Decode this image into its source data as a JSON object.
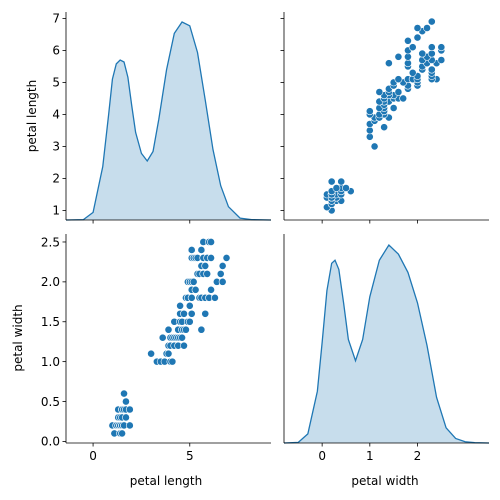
{
  "chart_data": {
    "type": "scatter",
    "figure_kind": "pairplot",
    "variables": [
      "petal length",
      "petal width"
    ],
    "axis_labels": {
      "petal_length": "petal length",
      "petal_width": "petal width"
    },
    "limits": {
      "petal_length": [
        0.7,
        7.2
      ],
      "petal_width": [
        -0.02,
        2.6
      ],
      "kde_x_petal_length": [
        -1.4,
        9.2
      ],
      "kde_x_petal_width": [
        -0.8,
        3.5
      ]
    },
    "ticks": {
      "petal_length_y": [
        1,
        2,
        3,
        4,
        5,
        6,
        7
      ],
      "petal_length_x": [
        0,
        5
      ],
      "petal_width_y": [
        0.0,
        0.5,
        1.0,
        1.5,
        2.0,
        2.5
      ],
      "petal_width_x": [
        0,
        1,
        2
      ]
    },
    "tick_labels": {
      "petal_length_y": [
        "1",
        "2",
        "3",
        "4",
        "5",
        "6",
        "7"
      ],
      "petal_length_x": [
        "0",
        "5"
      ],
      "petal_width_y": [
        "0.0",
        "0.5",
        "1.0",
        "1.5",
        "2.0",
        "2.5"
      ],
      "petal_width_x": [
        "0",
        "1",
        "2"
      ]
    },
    "kde": {
      "petal_length": {
        "x": [
          -1.4,
          -0.5,
          0.0,
          0.5,
          0.8,
          1.0,
          1.2,
          1.4,
          1.6,
          1.8,
          2.0,
          2.2,
          2.5,
          2.8,
          3.1,
          3.4,
          3.8,
          4.2,
          4.6,
          5.0,
          5.4,
          5.8,
          6.2,
          6.6,
          7.0,
          7.6,
          8.2,
          9.2
        ],
        "y": [
          0.0,
          0.002,
          0.04,
          0.28,
          0.55,
          0.74,
          0.82,
          0.84,
          0.83,
          0.75,
          0.6,
          0.46,
          0.35,
          0.31,
          0.36,
          0.53,
          0.79,
          0.98,
          1.04,
          1.02,
          0.88,
          0.63,
          0.37,
          0.18,
          0.07,
          0.01,
          0.002,
          0.0
        ]
      },
      "petal_width": {
        "x": [
          -0.8,
          -0.5,
          -0.3,
          -0.1,
          0.0,
          0.1,
          0.2,
          0.27,
          0.35,
          0.45,
          0.55,
          0.7,
          0.85,
          1.0,
          1.2,
          1.4,
          1.6,
          1.8,
          2.0,
          2.2,
          2.4,
          2.6,
          2.8,
          3.0,
          3.2,
          3.5
        ],
        "y": [
          0.0,
          0.002,
          0.03,
          0.17,
          0.33,
          0.5,
          0.59,
          0.6,
          0.57,
          0.46,
          0.34,
          0.27,
          0.34,
          0.48,
          0.6,
          0.65,
          0.62,
          0.56,
          0.46,
          0.32,
          0.15,
          0.05,
          0.015,
          0.004,
          0.001,
          0.0
        ]
      }
    },
    "points": [
      [
        1.0,
        0.2
      ],
      [
        1.1,
        0.1
      ],
      [
        1.2,
        0.2
      ],
      [
        1.2,
        0.2
      ],
      [
        1.3,
        0.2
      ],
      [
        1.3,
        0.3
      ],
      [
        1.3,
        0.4
      ],
      [
        1.3,
        0.2
      ],
      [
        1.4,
        0.2
      ],
      [
        1.4,
        0.2
      ],
      [
        1.4,
        0.1
      ],
      [
        1.4,
        0.3
      ],
      [
        1.4,
        0.2
      ],
      [
        1.4,
        0.2
      ],
      [
        1.5,
        0.2
      ],
      [
        1.5,
        0.4
      ],
      [
        1.5,
        0.1
      ],
      [
        1.5,
        0.2
      ],
      [
        1.5,
        0.3
      ],
      [
        1.5,
        0.2
      ],
      [
        1.5,
        0.4
      ],
      [
        1.6,
        0.2
      ],
      [
        1.6,
        0.4
      ],
      [
        1.6,
        0.6
      ],
      [
        1.6,
        0.2
      ],
      [
        1.7,
        0.4
      ],
      [
        1.7,
        0.5
      ],
      [
        1.7,
        0.3
      ],
      [
        1.9,
        0.4
      ],
      [
        1.9,
        0.2
      ],
      [
        3.0,
        1.1
      ],
      [
        3.3,
        1.0
      ],
      [
        3.5,
        1.0
      ],
      [
        3.6,
        1.3
      ],
      [
        3.7,
        1.0
      ],
      [
        3.8,
        1.1
      ],
      [
        3.9,
        1.1
      ],
      [
        3.9,
        1.2
      ],
      [
        3.9,
        1.4
      ],
      [
        4.0,
        1.0
      ],
      [
        4.0,
        1.3
      ],
      [
        4.0,
        1.2
      ],
      [
        4.1,
        1.0
      ],
      [
        4.1,
        1.3
      ],
      [
        4.2,
        1.3
      ],
      [
        4.2,
        1.5
      ],
      [
        4.2,
        1.2
      ],
      [
        4.3,
        1.3
      ],
      [
        4.4,
        1.4
      ],
      [
        4.4,
        1.3
      ],
      [
        4.4,
        1.2
      ],
      [
        4.5,
        1.5
      ],
      [
        4.5,
        1.3
      ],
      [
        4.5,
        1.6
      ],
      [
        4.5,
        1.7
      ],
      [
        4.6,
        1.5
      ],
      [
        4.6,
        1.4
      ],
      [
        4.6,
        1.3
      ],
      [
        4.7,
        1.4
      ],
      [
        4.7,
        1.6
      ],
      [
        4.7,
        1.2
      ],
      [
        4.8,
        1.8
      ],
      [
        4.8,
        1.4
      ],
      [
        4.8,
        1.8
      ],
      [
        4.9,
        1.5
      ],
      [
        4.9,
        1.8
      ],
      [
        4.9,
        2.0
      ],
      [
        5.0,
        1.7
      ],
      [
        5.0,
        1.5
      ],
      [
        5.0,
        2.0
      ],
      [
        5.1,
        1.8
      ],
      [
        5.1,
        1.9
      ],
      [
        5.1,
        2.0
      ],
      [
        5.1,
        2.4
      ],
      [
        5.1,
        2.3
      ],
      [
        5.1,
        1.6
      ],
      [
        5.2,
        2.3
      ],
      [
        5.2,
        2.0
      ],
      [
        5.3,
        1.9
      ],
      [
        5.3,
        2.3
      ],
      [
        5.4,
        2.1
      ],
      [
        5.4,
        2.3
      ],
      [
        5.5,
        1.8
      ],
      [
        5.5,
        2.1
      ],
      [
        5.6,
        2.4
      ],
      [
        5.6,
        2.2
      ],
      [
        5.6,
        1.4
      ],
      [
        5.6,
        1.8
      ],
      [
        5.7,
        2.1
      ],
      [
        5.7,
        2.5
      ],
      [
        5.7,
        2.3
      ],
      [
        5.8,
        2.2
      ],
      [
        5.8,
        1.8
      ],
      [
        5.8,
        1.6
      ],
      [
        5.9,
        2.1
      ],
      [
        5.9,
        2.3
      ],
      [
        6.0,
        1.8
      ],
      [
        6.0,
        2.5
      ],
      [
        6.1,
        1.9
      ],
      [
        6.1,
        2.3
      ],
      [
        6.1,
        2.5
      ],
      [
        6.3,
        1.8
      ],
      [
        6.4,
        2.0
      ],
      [
        6.6,
        2.1
      ],
      [
        6.7,
        2.2
      ],
      [
        6.7,
        2.0
      ],
      [
        6.9,
        2.3
      ]
    ],
    "colors": {
      "point_fill": "#1f77b4",
      "point_edge": "#ffffff",
      "kde_line": "#1f77b4",
      "kde_fill": "#1f77b4"
    },
    "grid": false,
    "legend": "none"
  }
}
